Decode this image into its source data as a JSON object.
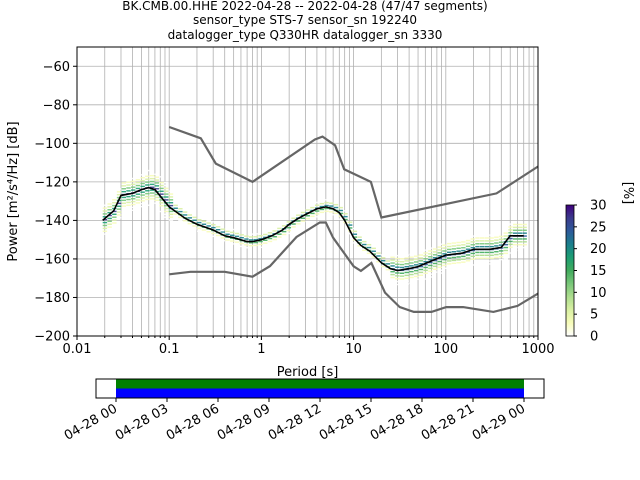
{
  "title_lines": [
    "BK.CMB.00.HHE   2022-04-28 -- 2022-04-28  (47/47 segments)",
    "sensor_type STS-7 sensor_sn 192240",
    "datalogger_type Q330HR datalogger_sn 3330"
  ],
  "chart_data": [
    {
      "type": "heatmap",
      "title": "",
      "xlabel": "Period [s]",
      "ylabel": "Power [m²/s⁴/Hz] [dB]",
      "xscale": "log",
      "xlim": [
        0.01,
        1000
      ],
      "ylim": [
        -200,
        -50
      ],
      "x_tick_labels": [
        "0.01",
        "0.1",
        "1",
        "10",
        "100",
        "1000"
      ],
      "y_ticks": [
        -60,
        -80,
        -100,
        -120,
        -140,
        -160,
        -180,
        -200
      ],
      "y_tick_labels": [
        "−60",
        "−80",
        "−100",
        "−120",
        "−140",
        "−160",
        "−180",
        "−200"
      ],
      "grid": true,
      "colorbar": {
        "label": "[%]",
        "range": [
          0,
          30
        ],
        "ticks": [
          "0",
          "5",
          "10",
          "15",
          "20",
          "25",
          "30"
        ],
        "colors": [
          "#ffffff",
          "#f7fcb9",
          "#d9f0a3",
          "#addd8e",
          "#78c679",
          "#41ab5d",
          "#1d9e73",
          "#1b7f8c",
          "#2d5a9a",
          "#3b3b8c",
          "#3f007d"
        ]
      },
      "mode_curve": {
        "color": "#000000",
        "x": [
          0.019,
          0.025,
          0.03,
          0.04,
          0.05,
          0.06,
          0.07,
          0.1,
          0.15,
          0.2,
          0.3,
          0.4,
          0.5,
          0.7,
          0.8,
          1.0,
          1.3,
          1.7,
          2.0,
          2.5,
          3.0,
          4.0,
          5.0,
          6.0,
          7.0,
          8.0,
          10,
          12,
          15,
          20,
          25,
          30,
          40,
          50,
          70,
          100,
          150,
          200,
          300,
          400,
          500,
          600,
          700
        ],
        "y": [
          -140,
          -135,
          -127,
          -126,
          -124,
          -123,
          -124,
          -133,
          -139,
          -142,
          -145,
          -148,
          -149,
          -151,
          -151,
          -150,
          -148,
          -145,
          -142,
          -139,
          -137,
          -134,
          -133,
          -134,
          -136,
          -140,
          -149,
          -153,
          -156,
          -162,
          -165,
          -166,
          -165,
          -164,
          -161,
          -158,
          -157,
          -155,
          -155,
          -154,
          -148,
          -148,
          -148
        ]
      },
      "noise_models": {
        "color": "#666666",
        "nhnm": {
          "x": [
            0.1,
            0.22,
            0.32,
            0.8,
            3.8,
            4.6,
            6.3,
            7.9,
            15.4,
            20,
            354.8,
            1000
          ],
          "y": [
            -91.5,
            -97.4,
            -110.5,
            -120,
            -98,
            -96.5,
            -101,
            -113.5,
            -120,
            -138.5,
            -126,
            -112
          ]
        },
        "nlnm": {
          "x": [
            0.1,
            0.17,
            0.4,
            0.8,
            1.24,
            2.4,
            4.3,
            5.0,
            6.0,
            10,
            12,
            15.6,
            21.9,
            31.6,
            45,
            70,
            101,
            154,
            328,
            600,
            1000
          ],
          "y": [
            -168,
            -166.7,
            -166.7,
            -169.2,
            -163.7,
            -148.6,
            -141.1,
            -141.1,
            -149,
            -163.8,
            -166.2,
            -162.1,
            -177.5,
            -185,
            -187.5,
            -187.5,
            -185,
            -185,
            -187.5,
            -184.4,
            -178
          ]
        }
      }
    },
    {
      "type": "timeline",
      "x_tick_labels": [
        "04-28 00",
        "04-28 03",
        "04-28 06",
        "04-28 09",
        "04-28 12",
        "04-28 15",
        "04-28 18",
        "04-28 21",
        "04-29 00"
      ],
      "coverage_start": "04-28 00",
      "coverage_end": "04-29 00",
      "bar_colors": [
        "#008000",
        "#0000ff"
      ]
    }
  ]
}
